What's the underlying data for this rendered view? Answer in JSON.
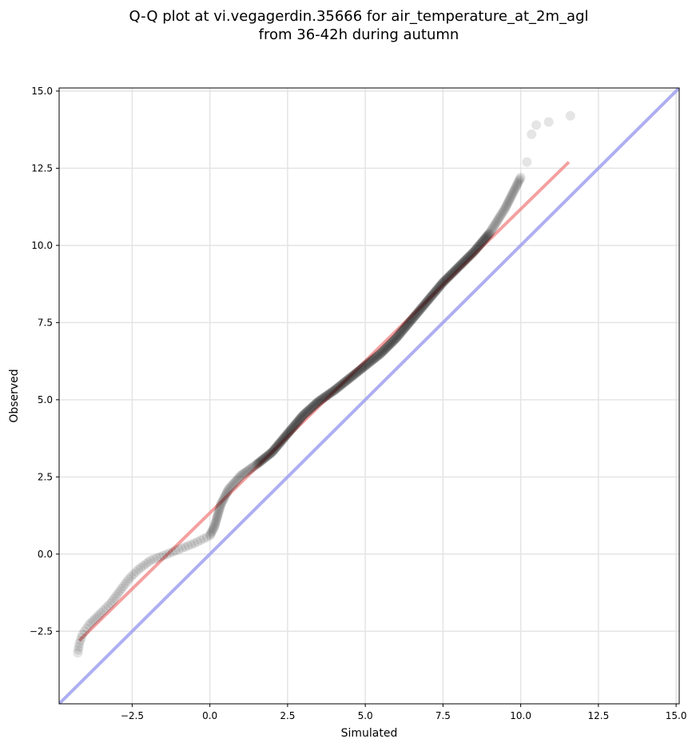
{
  "chart_data": {
    "type": "scatter",
    "title": [
      "Q-Q plot at vi.vegagerdin.35666 for air_temperature_at_2m_agl",
      "from 36-42h during autumn"
    ],
    "xlabel": "Simulated",
    "ylabel": "Observed",
    "xlim": [
      -4.85,
      15.1
    ],
    "ylim": [
      -4.85,
      15.1
    ],
    "grid": true,
    "xticks": [
      -2.5,
      0.0,
      2.5,
      5.0,
      7.5,
      10.0,
      12.5,
      15.0
    ],
    "yticks": [
      -2.5,
      0.0,
      2.5,
      5.0,
      7.5,
      10.0,
      12.5,
      15.0
    ],
    "xtick_labels": [
      "−2.5",
      "0.0",
      "2.5",
      "5.0",
      "7.5",
      "10.0",
      "12.5",
      "15.0"
    ],
    "ytick_labels": [
      "−2.5",
      "0.0",
      "2.5",
      "5.0",
      "7.5",
      "10.0",
      "12.5",
      "15.0"
    ],
    "quantile_path": [
      [
        -4.25,
        -3.2
      ],
      [
        -4.2,
        -2.9
      ],
      [
        -4.1,
        -2.6
      ],
      [
        -3.9,
        -2.3
      ],
      [
        -3.7,
        -2.1
      ],
      [
        -3.5,
        -1.9
      ],
      [
        -3.2,
        -1.6
      ],
      [
        -2.9,
        -1.2
      ],
      [
        -2.6,
        -0.8
      ],
      [
        -2.3,
        -0.5
      ],
      [
        -1.9,
        -0.2
      ],
      [
        -1.5,
        -0.05
      ],
      [
        -1.0,
        0.15
      ],
      [
        -0.5,
        0.35
      ],
      [
        0.0,
        0.6
      ],
      [
        0.15,
        0.9
      ],
      [
        0.35,
        1.6
      ],
      [
        0.6,
        2.1
      ],
      [
        1.0,
        2.55
      ],
      [
        1.5,
        2.9
      ],
      [
        2.0,
        3.3
      ],
      [
        2.5,
        3.9
      ],
      [
        3.0,
        4.5
      ],
      [
        3.5,
        4.95
      ],
      [
        4.0,
        5.3
      ],
      [
        4.5,
        5.7
      ],
      [
        5.0,
        6.1
      ],
      [
        5.5,
        6.5
      ],
      [
        6.0,
        7.0
      ],
      [
        6.5,
        7.6
      ],
      [
        7.0,
        8.2
      ],
      [
        7.5,
        8.8
      ],
      [
        8.0,
        9.3
      ],
      [
        8.5,
        9.8
      ],
      [
        9.0,
        10.4
      ],
      [
        9.5,
        11.2
      ],
      [
        9.8,
        11.8
      ],
      [
        10.0,
        12.2
      ]
    ],
    "outliers_x": [
      10.2,
      10.35,
      10.5,
      10.9,
      11.6
    ],
    "outliers_y": [
      12.7,
      13.6,
      13.9,
      14.0,
      14.2
    ],
    "series": [
      {
        "kind": "fit_line",
        "color": "#f08080",
        "x": [
          -4.2,
          11.55
        ],
        "y": [
          -2.8,
          12.7
        ]
      },
      {
        "kind": "identity_line",
        "color": "#a0a0f0",
        "x": [
          -4.85,
          15.1
        ],
        "y": [
          -4.85,
          15.1
        ]
      }
    ],
    "point_color": "#000000"
  }
}
